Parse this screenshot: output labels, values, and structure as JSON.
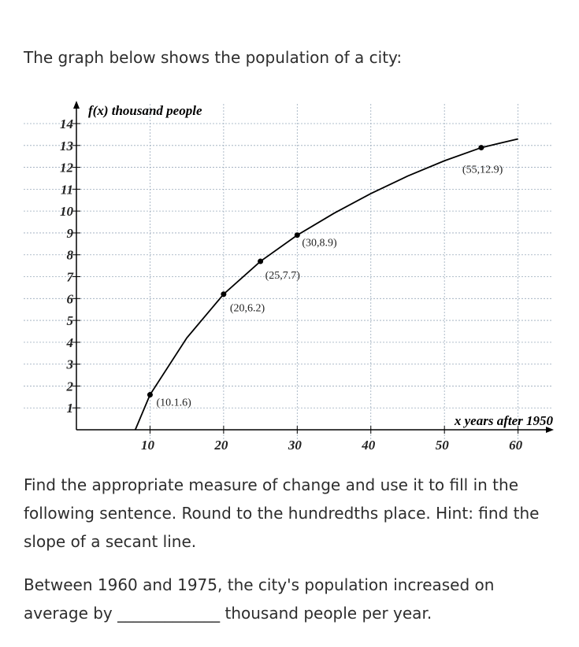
{
  "prompt": "The graph below shows the population of a city:",
  "chart_data": {
    "type": "line",
    "ylabel": "f(x) thousand people",
    "xlabel": "x years after 1950",
    "xlim": [
      0,
      64
    ],
    "ylim": [
      0,
      14.9
    ],
    "xticks": [
      10,
      20,
      30,
      40,
      50,
      60
    ],
    "yticks": [
      1,
      2,
      3,
      4,
      5,
      6,
      7,
      8,
      9,
      10,
      11,
      12,
      13,
      14
    ],
    "grid": true,
    "series": [
      {
        "color": "#000000",
        "x": [
          8,
          10,
          15,
          20,
          25,
          30,
          35,
          40,
          45,
          50,
          55,
          60
        ],
        "values": [
          0,
          1.6,
          4.2,
          6.2,
          7.7,
          8.9,
          9.9,
          10.8,
          11.6,
          12.3,
          12.9,
          13.3
        ]
      }
    ],
    "points": {
      "x": [
        10,
        20,
        25,
        30,
        55
      ],
      "values": [
        1.6,
        6.2,
        7.7,
        8.9,
        12.9
      ],
      "labels": [
        "(10.1.6)",
        "(20,6.2)",
        "(25,7.7)",
        "(30,8.9)",
        "(55,12.9)"
      ]
    }
  },
  "instructions": "Find the appropriate measure of change and use it to fill in the following sentence.  Round to the hundredths place.  Hint: find the slope of a secant line.",
  "sentence": "Between 1960 and 1975, the city's population increased on average by _____________ thousand people per year."
}
